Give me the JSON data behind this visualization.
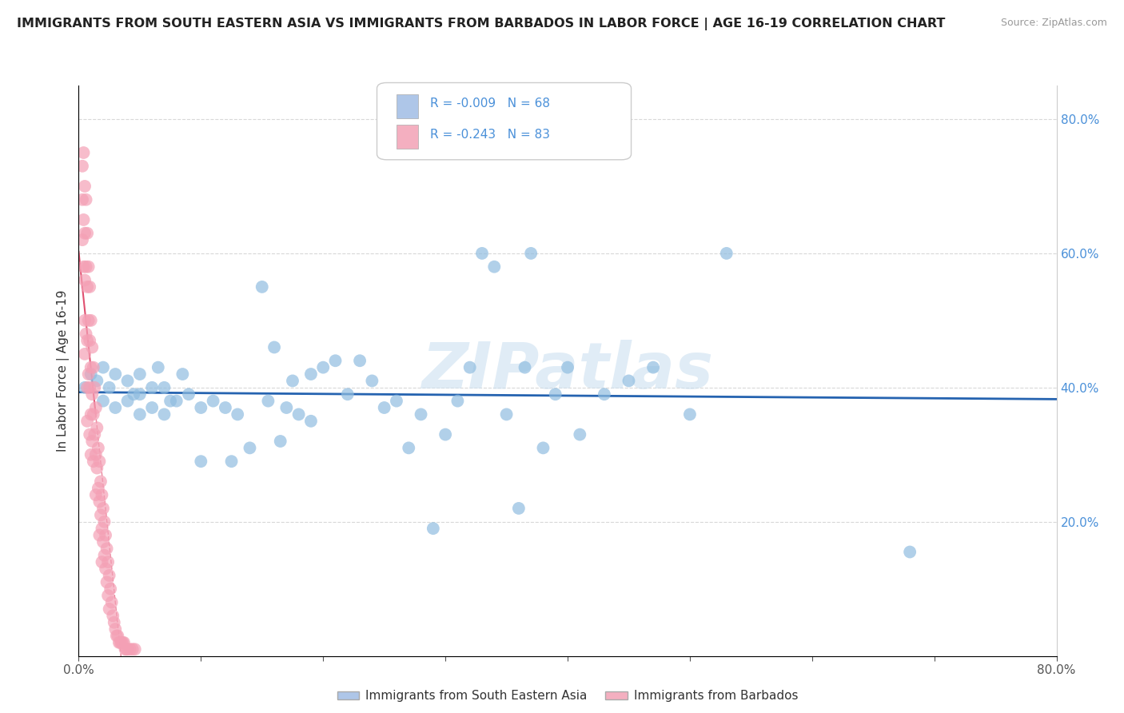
{
  "title": "IMMIGRANTS FROM SOUTH EASTERN ASIA VS IMMIGRANTS FROM BARBADOS IN LABOR FORCE | AGE 16-19 CORRELATION CHART",
  "source": "Source: ZipAtlas.com",
  "ylabel": "In Labor Force | Age 16-19",
  "xlim": [
    0.0,
    0.8
  ],
  "ylim": [
    0.0,
    0.85
  ],
  "xtick_vals": [
    0.0,
    0.1,
    0.2,
    0.3,
    0.4,
    0.5,
    0.6,
    0.7,
    0.8
  ],
  "xtick_labels_bottom": [
    "0.0%",
    "",
    "",
    "",
    "",
    "",
    "",
    "",
    "80.0%"
  ],
  "ytick_vals": [
    0.2,
    0.4,
    0.6,
    0.8
  ],
  "ytick_labels": [
    "20.0%",
    "40.0%",
    "60.0%",
    "80.0%"
  ],
  "blue_R": -0.009,
  "blue_N": 68,
  "pink_R": -0.243,
  "pink_N": 83,
  "blue_color": "#90bde0",
  "pink_color": "#f4a0b5",
  "blue_line_color": "#2563b0",
  "pink_line_color": "#e05070",
  "legend_label_blue": "Immigrants from South Eastern Asia",
  "legend_label_pink": "Immigrants from Barbados",
  "watermark_text": "ZIPatlas",
  "background_color": "#ffffff",
  "grid_color": "#d8d8d8",
  "title_color": "#222222",
  "blue_scatter_x": [
    0.68,
    0.005,
    0.01,
    0.015,
    0.02,
    0.02,
    0.025,
    0.03,
    0.03,
    0.04,
    0.04,
    0.045,
    0.05,
    0.05,
    0.05,
    0.06,
    0.06,
    0.065,
    0.07,
    0.07,
    0.075,
    0.08,
    0.085,
    0.09,
    0.1,
    0.1,
    0.11,
    0.12,
    0.125,
    0.13,
    0.14,
    0.15,
    0.155,
    0.16,
    0.165,
    0.17,
    0.175,
    0.18,
    0.19,
    0.19,
    0.2,
    0.21,
    0.22,
    0.23,
    0.24,
    0.25,
    0.26,
    0.27,
    0.28,
    0.29,
    0.3,
    0.31,
    0.32,
    0.33,
    0.34,
    0.35,
    0.36,
    0.365,
    0.37,
    0.38,
    0.39,
    0.4,
    0.41,
    0.43,
    0.45,
    0.47,
    0.5,
    0.53
  ],
  "blue_scatter_y": [
    0.155,
    0.4,
    0.42,
    0.41,
    0.38,
    0.43,
    0.4,
    0.37,
    0.42,
    0.38,
    0.41,
    0.39,
    0.36,
    0.39,
    0.42,
    0.37,
    0.4,
    0.43,
    0.36,
    0.4,
    0.38,
    0.38,
    0.42,
    0.39,
    0.29,
    0.37,
    0.38,
    0.37,
    0.29,
    0.36,
    0.31,
    0.55,
    0.38,
    0.46,
    0.32,
    0.37,
    0.41,
    0.36,
    0.42,
    0.35,
    0.43,
    0.44,
    0.39,
    0.44,
    0.41,
    0.37,
    0.38,
    0.31,
    0.36,
    0.19,
    0.33,
    0.38,
    0.43,
    0.6,
    0.58,
    0.36,
    0.22,
    0.43,
    0.6,
    0.31,
    0.39,
    0.43,
    0.33,
    0.39,
    0.41,
    0.43,
    0.36,
    0.6
  ],
  "pink_scatter_x": [
    0.003,
    0.003,
    0.003,
    0.004,
    0.004,
    0.004,
    0.005,
    0.005,
    0.005,
    0.005,
    0.005,
    0.006,
    0.006,
    0.006,
    0.007,
    0.007,
    0.007,
    0.007,
    0.007,
    0.008,
    0.008,
    0.008,
    0.009,
    0.009,
    0.009,
    0.009,
    0.01,
    0.01,
    0.01,
    0.01,
    0.011,
    0.011,
    0.011,
    0.012,
    0.012,
    0.012,
    0.013,
    0.013,
    0.014,
    0.014,
    0.014,
    0.015,
    0.015,
    0.016,
    0.016,
    0.017,
    0.017,
    0.017,
    0.018,
    0.018,
    0.019,
    0.019,
    0.019,
    0.02,
    0.02,
    0.021,
    0.021,
    0.022,
    0.022,
    0.023,
    0.023,
    0.024,
    0.024,
    0.025,
    0.025,
    0.026,
    0.027,
    0.028,
    0.029,
    0.03,
    0.031,
    0.032,
    0.033,
    0.034,
    0.035,
    0.036,
    0.037,
    0.038,
    0.039,
    0.04,
    0.042,
    0.044,
    0.046
  ],
  "pink_scatter_y": [
    0.73,
    0.68,
    0.62,
    0.75,
    0.65,
    0.58,
    0.7,
    0.63,
    0.56,
    0.5,
    0.45,
    0.68,
    0.58,
    0.48,
    0.63,
    0.55,
    0.47,
    0.4,
    0.35,
    0.58,
    0.5,
    0.42,
    0.55,
    0.47,
    0.4,
    0.33,
    0.5,
    0.43,
    0.36,
    0.3,
    0.46,
    0.39,
    0.32,
    0.43,
    0.36,
    0.29,
    0.4,
    0.33,
    0.37,
    0.3,
    0.24,
    0.34,
    0.28,
    0.31,
    0.25,
    0.29,
    0.23,
    0.18,
    0.26,
    0.21,
    0.24,
    0.19,
    0.14,
    0.22,
    0.17,
    0.2,
    0.15,
    0.18,
    0.13,
    0.16,
    0.11,
    0.14,
    0.09,
    0.12,
    0.07,
    0.1,
    0.08,
    0.06,
    0.05,
    0.04,
    0.03,
    0.03,
    0.02,
    0.02,
    0.02,
    0.02,
    0.02,
    0.01,
    0.01,
    0.01,
    0.01,
    0.01,
    0.01
  ]
}
